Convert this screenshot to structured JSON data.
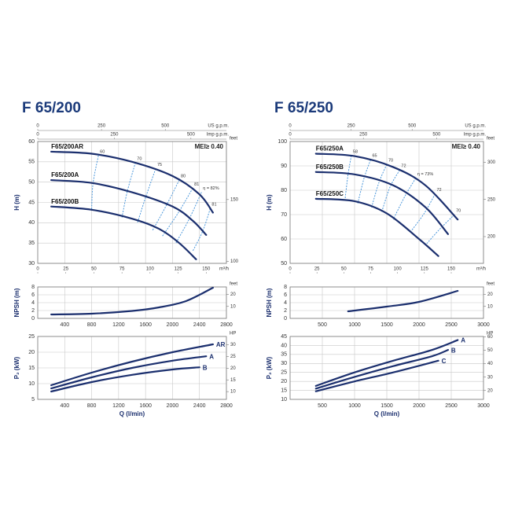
{
  "chart_data": [
    {
      "type": "line",
      "title": "F 65/200",
      "ylabel": "H (m)",
      "annotation": "MEI≥ 0.40",
      "xlim": [
        0,
        2800
      ],
      "xticks": [
        400,
        800,
        1200,
        1600,
        2000,
        2400,
        2800
      ],
      "xtick_labels": false,
      "ylim": [
        30,
        60
      ],
      "yticks": [
        30,
        35,
        40,
        45,
        50,
        55,
        60
      ],
      "y2lim": [
        98.4,
        196.9
      ],
      "y2ticks": [
        100,
        150
      ],
      "y2label": "feet",
      "extra_x_axes": [
        {
          "label": "US g.p.m.",
          "lim": [
            0,
            739.7
          ],
          "ticks": [
            0,
            250,
            500
          ],
          "position": "top"
        },
        {
          "label": "Imp g.p.m.",
          "lim": [
            0,
            615.9
          ],
          "ticks": [
            0,
            250,
            500
          ],
          "position": "top2"
        },
        {
          "label": "m³/h",
          "lim": [
            0,
            168
          ],
          "ticks": [
            0,
            25,
            50,
            75,
            100,
            125,
            150
          ],
          "position": "bottom"
        }
      ],
      "grid": true,
      "series_label": "start",
      "color": "#1b2f6e",
      "series": [
        {
          "name": "F65/200AR",
          "x": [
            200,
            800,
            1400,
            2000,
            2400,
            2600
          ],
          "values": [
            57.5,
            57,
            55,
            51.5,
            47,
            42.5
          ]
        },
        {
          "name": "F65/200A",
          "x": [
            200,
            800,
            1400,
            2000,
            2300,
            2500
          ],
          "values": [
            50.5,
            49.8,
            47.5,
            44,
            40.5,
            37
          ]
        },
        {
          "name": "F65/200B",
          "x": [
            200,
            800,
            1400,
            1800,
            2100,
            2350
          ],
          "values": [
            44,
            43.2,
            41,
            38.5,
            35,
            31
          ]
        }
      ],
      "efficiency_color": "#3b8ed8",
      "efficiency_lines": [
        {
          "label": "60",
          "x": [
            900,
            820,
            800
          ],
          "values": [
            56.5,
            49.6,
            43
          ]
        },
        {
          "label": "70",
          "x": [
            1450,
            1330,
            1250
          ],
          "values": [
            54.8,
            47.8,
            41.3
          ]
        },
        {
          "label": "75",
          "x": [
            1750,
            1600,
            1480
          ],
          "values": [
            53.3,
            46.2,
            40
          ]
        },
        {
          "label": "80",
          "x": [
            2100,
            1900,
            1700
          ],
          "values": [
            50.5,
            44,
            38
          ]
        },
        {
          "label": "81",
          "x": [
            2300,
            2080,
            1850
          ],
          "values": [
            48.5,
            42.3,
            36.7
          ]
        },
        {
          "label": "η = 82%",
          "x": [
            2430,
            2250,
            2050
          ],
          "values": [
            47.5,
            41,
            35
          ]
        },
        {
          "label": "81",
          "x": [
            2560,
            2450,
            2300
          ],
          "values": [
            43.5,
            38,
            33
          ]
        }
      ]
    },
    {
      "type": "line",
      "ylabel": "NPSH (m)",
      "xlim": [
        0,
        2800
      ],
      "xticks": [
        400,
        800,
        1200,
        1600,
        2000,
        2400,
        2800
      ],
      "ylim": [
        0,
        8
      ],
      "yticks": [
        0,
        2,
        4,
        6,
        8
      ],
      "y2lim": [
        0,
        26.2
      ],
      "y2ticks": [
        10,
        20
      ],
      "y2label": "feet",
      "grid": true,
      "color": "#1b2f6e",
      "series": [
        {
          "x": [
            200,
            800,
            1400,
            1800,
            2200,
            2600
          ],
          "values": [
            1,
            1.2,
            1.9,
            2.8,
            4.4,
            7.8
          ]
        }
      ]
    },
    {
      "type": "line",
      "ylabel": "P₂ (kW)",
      "xlabel": "Q (l/min)",
      "xlim": [
        0,
        2800
      ],
      "xticks": [
        400,
        800,
        1200,
        1600,
        2000,
        2400,
        2800
      ],
      "ylim": [
        5,
        25
      ],
      "yticks": [
        5,
        10,
        15,
        20,
        25
      ],
      "y2lim": [
        6.7,
        33.5
      ],
      "y2ticks": [
        10,
        15,
        20,
        25,
        30
      ],
      "y2label": "HP",
      "grid": true,
      "series_label": "end",
      "color": "#1b2f6e",
      "series": [
        {
          "name": "AR",
          "x": [
            200,
            800,
            1400,
            2000,
            2600
          ],
          "values": [
            9.5,
            13.5,
            17,
            20,
            22.5
          ]
        },
        {
          "name": "A",
          "x": [
            200,
            800,
            1400,
            2000,
            2500
          ],
          "values": [
            8.5,
            12,
            15,
            17.3,
            18.7
          ]
        },
        {
          "name": "B",
          "x": [
            200,
            800,
            1400,
            2000,
            2400
          ],
          "values": [
            7.5,
            10.5,
            12.8,
            14.5,
            15.2
          ]
        }
      ]
    },
    {
      "type": "line",
      "title": "F 65/250",
      "ylabel": "H (m)",
      "annotation": "MEI≥ 0.40",
      "xlim": [
        0,
        3000
      ],
      "xticks": [
        500,
        1000,
        1500,
        2000,
        2500,
        3000
      ],
      "xtick_labels": false,
      "ylim": [
        50,
        100
      ],
      "yticks": [
        50,
        60,
        70,
        80,
        90,
        100
      ],
      "y2lim": [
        164,
        328
      ],
      "y2ticks": [
        200,
        250,
        300
      ],
      "y2label": "feet",
      "extra_x_axes": [
        {
          "label": "US g.p.m.",
          "lim": [
            0,
            792.5
          ],
          "ticks": [
            0,
            250,
            500
          ],
          "position": "top"
        },
        {
          "label": "Imp g.p.m.",
          "lim": [
            0,
            660
          ],
          "ticks": [
            0,
            250,
            500
          ],
          "position": "top2"
        },
        {
          "label": "m³/h",
          "lim": [
            0,
            180
          ],
          "ticks": [
            0,
            25,
            50,
            75,
            100,
            125,
            150
          ],
          "position": "bottom"
        }
      ],
      "grid": true,
      "series_label": "start",
      "color": "#1b2f6e",
      "series": [
        {
          "name": "F65/250A",
          "x": [
            400,
            1000,
            1600,
            2100,
            2600
          ],
          "values": [
            95,
            94,
            89.5,
            82,
            68
          ]
        },
        {
          "name": "F65/250B",
          "x": [
            400,
            1000,
            1600,
            2100,
            2450
          ],
          "values": [
            87.5,
            86.5,
            82,
            73,
            62
          ]
        },
        {
          "name": "F65/250C",
          "x": [
            400,
            1000,
            1500,
            2000,
            2300
          ],
          "values": [
            76.5,
            75.5,
            70.5,
            60,
            53
          ]
        }
      ],
      "efficiency_color": "#3b8ed8",
      "efficiency_lines": [
        {
          "label": "58",
          "x": [
            950,
            900,
            850
          ],
          "values": [
            94.2,
            86.6,
            75.8
          ]
        },
        {
          "label": "65",
          "x": [
            1250,
            1150,
            1050
          ],
          "values": [
            92.5,
            85.2,
            74.6
          ]
        },
        {
          "label": "70",
          "x": [
            1500,
            1380,
            1260
          ],
          "values": [
            90.6,
            83.3,
            72.6
          ]
        },
        {
          "label": "72",
          "x": [
            1700,
            1550,
            1420
          ],
          "values": [
            88.3,
            81.3,
            71
          ]
        },
        {
          "label": "η = 73%",
          "x": [
            1950,
            1780,
            1600
          ],
          "values": [
            85,
            77.5,
            68
          ]
        },
        {
          "label": "72",
          "x": [
            2250,
            2080,
            1870
          ],
          "values": [
            78.5,
            70.5,
            63
          ]
        },
        {
          "label": "70",
          "x": [
            2550,
            2320,
            2100
          ],
          "values": [
            70,
            64,
            57.5
          ]
        }
      ]
    },
    {
      "type": "line",
      "ylabel": "NPSH (m)",
      "xlim": [
        0,
        3000
      ],
      "xticks": [
        500,
        1000,
        1500,
        2000,
        2500,
        3000
      ],
      "ylim": [
        0,
        8
      ],
      "yticks": [
        0,
        2,
        4,
        6,
        8
      ],
      "y2lim": [
        0,
        26.2
      ],
      "y2ticks": [
        10,
        20
      ],
      "y2label": "feet",
      "grid": true,
      "color": "#1b2f6e",
      "series": [
        {
          "x": [
            900,
            1500,
            2000,
            2600
          ],
          "values": [
            1.8,
            3,
            4.2,
            7
          ]
        }
      ]
    },
    {
      "type": "line",
      "ylabel": "P₂ (kW)",
      "xlabel": "Q (l/min)",
      "xlim": [
        0,
        3000
      ],
      "xticks": [
        500,
        1000,
        1500,
        2000,
        2500,
        3000
      ],
      "ylim": [
        10,
        45
      ],
      "yticks": [
        10,
        15,
        20,
        25,
        30,
        35,
        40,
        45
      ],
      "y2lim": [
        13.4,
        60.3
      ],
      "y2ticks": [
        20,
        30,
        40,
        50,
        60
      ],
      "y2label": "HP",
      "grid": true,
      "series_label": "end",
      "color": "#1b2f6e",
      "series": [
        {
          "name": "A",
          "x": [
            400,
            1000,
            1600,
            2200,
            2600
          ],
          "values": [
            17.5,
            25,
            31.5,
            37.5,
            43
          ]
        },
        {
          "name": "B",
          "x": [
            400,
            1000,
            1600,
            2200,
            2450
          ],
          "values": [
            16,
            22.5,
            28.5,
            34,
            37.5
          ]
        },
        {
          "name": "C",
          "x": [
            400,
            1000,
            1600,
            2300
          ],
          "values": [
            14.5,
            20,
            25,
            31.5
          ]
        }
      ]
    }
  ]
}
